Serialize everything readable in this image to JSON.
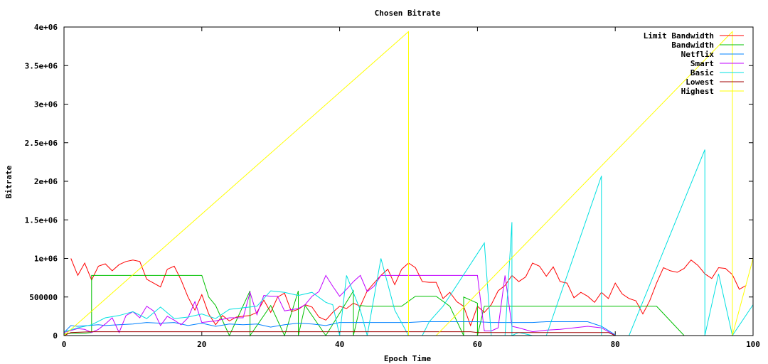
{
  "chart_data": {
    "type": "line",
    "title": "Chosen Bitrate",
    "xlabel": "Epoch Time",
    "ylabel": "Bitrate",
    "xlim": [
      0,
      100
    ],
    "ylim": [
      0,
      4000000
    ],
    "grid": false,
    "legend_position": "top-right",
    "x_ticks": [
      0,
      20,
      40,
      60,
      80,
      100
    ],
    "x_tick_labels": [
      "0",
      "20",
      "40",
      "60",
      "80",
      "100"
    ],
    "y_ticks": [
      0,
      500000,
      1000000,
      1500000,
      2000000,
      2500000,
      3000000,
      3500000,
      4000000
    ],
    "y_tick_labels": [
      "0",
      "500000",
      "1e+06",
      "1.5e+06",
      "2e+06",
      "2.5e+06",
      "3e+06",
      "3.5e+06",
      "4e+06"
    ],
    "series": [
      {
        "name": "Limit Bandwidth",
        "color": "#ff0000",
        "points": [
          [
            1,
            1000000
          ],
          [
            2,
            780000
          ],
          [
            3,
            940000
          ],
          [
            4,
            720000
          ],
          [
            5,
            900000
          ],
          [
            6,
            930000
          ],
          [
            7,
            840000
          ],
          [
            8,
            920000
          ],
          [
            9,
            960000
          ],
          [
            10,
            980000
          ],
          [
            11,
            960000
          ],
          [
            12,
            730000
          ],
          [
            13,
            680000
          ],
          [
            14,
            630000
          ],
          [
            15,
            860000
          ],
          [
            16,
            900000
          ],
          [
            17,
            720000
          ],
          [
            18,
            500000
          ],
          [
            19,
            330000
          ],
          [
            20,
            530000
          ],
          [
            21,
            280000
          ],
          [
            22,
            140000
          ],
          [
            23,
            260000
          ],
          [
            24,
            190000
          ],
          [
            25,
            240000
          ],
          [
            26,
            250000
          ],
          [
            27,
            260000
          ],
          [
            28,
            300000
          ],
          [
            29,
            460000
          ],
          [
            30,
            300000
          ],
          [
            31,
            500000
          ],
          [
            32,
            550000
          ],
          [
            33,
            310000
          ],
          [
            34,
            340000
          ],
          [
            35,
            400000
          ],
          [
            36,
            370000
          ],
          [
            37,
            240000
          ],
          [
            38,
            200000
          ],
          [
            39,
            300000
          ],
          [
            40,
            380000
          ],
          [
            41,
            350000
          ],
          [
            42,
            420000
          ],
          [
            43,
            380000
          ],
          [
            44,
            580000
          ],
          [
            45,
            680000
          ],
          [
            46,
            780000
          ],
          [
            47,
            860000
          ],
          [
            48,
            660000
          ],
          [
            49,
            860000
          ],
          [
            50,
            940000
          ],
          [
            51,
            880000
          ],
          [
            52,
            700000
          ],
          [
            53,
            690000
          ],
          [
            54,
            690000
          ],
          [
            55,
            480000
          ],
          [
            56,
            560000
          ],
          [
            57,
            440000
          ],
          [
            58,
            380000
          ],
          [
            59,
            130000
          ],
          [
            60,
            380000
          ],
          [
            61,
            300000
          ],
          [
            62,
            400000
          ],
          [
            63,
            580000
          ],
          [
            64,
            650000
          ],
          [
            65,
            780000
          ],
          [
            66,
            700000
          ],
          [
            67,
            760000
          ],
          [
            68,
            940000
          ],
          [
            69,
            900000
          ],
          [
            70,
            770000
          ],
          [
            71,
            890000
          ],
          [
            72,
            700000
          ],
          [
            73,
            680000
          ],
          [
            74,
            490000
          ],
          [
            75,
            560000
          ],
          [
            76,
            510000
          ],
          [
            77,
            430000
          ],
          [
            78,
            560000
          ],
          [
            79,
            480000
          ],
          [
            80,
            680000
          ],
          [
            81,
            540000
          ],
          [
            82,
            480000
          ],
          [
            83,
            450000
          ],
          [
            84,
            280000
          ],
          [
            85,
            450000
          ],
          [
            86,
            680000
          ],
          [
            87,
            880000
          ],
          [
            88,
            840000
          ],
          [
            89,
            820000
          ],
          [
            90,
            870000
          ],
          [
            91,
            980000
          ],
          [
            92,
            910000
          ],
          [
            93,
            800000
          ],
          [
            94,
            740000
          ],
          [
            95,
            880000
          ],
          [
            96,
            870000
          ],
          [
            97,
            790000
          ],
          [
            98,
            600000
          ],
          [
            99,
            650000
          ]
        ]
      },
      {
        "name": "Bandwidth",
        "color": "#00c000",
        "points": [
          [
            0,
            20000
          ],
          [
            1,
            30000
          ],
          [
            3,
            30000
          ],
          [
            4,
            40000
          ],
          [
            4,
            780000
          ],
          [
            20,
            780000
          ],
          [
            21,
            500000
          ],
          [
            22,
            390000
          ],
          [
            24,
            0
          ],
          [
            27,
            580000
          ],
          [
            27,
            0
          ],
          [
            30,
            390000
          ],
          [
            32,
            0
          ],
          [
            34,
            580000
          ],
          [
            34,
            0
          ],
          [
            35,
            390000
          ],
          [
            38,
            0
          ],
          [
            42,
            580000
          ],
          [
            42,
            0
          ],
          [
            43,
            390000
          ],
          [
            44,
            380000
          ],
          [
            49,
            380000
          ],
          [
            51,
            510000
          ],
          [
            54,
            510000
          ],
          [
            56,
            380000
          ],
          [
            58,
            0
          ],
          [
            58,
            500000
          ],
          [
            60,
            420000
          ],
          [
            60,
            0
          ],
          [
            61,
            380000
          ],
          [
            86,
            380000
          ],
          [
            90,
            0
          ]
        ]
      },
      {
        "name": "Netflix",
        "color": "#0080ff",
        "points": [
          [
            0,
            40000
          ],
          [
            1,
            130000
          ],
          [
            2,
            120000
          ],
          [
            5,
            140000
          ],
          [
            6,
            130000
          ],
          [
            8,
            140000
          ],
          [
            10,
            150000
          ],
          [
            12,
            170000
          ],
          [
            14,
            160000
          ],
          [
            16,
            170000
          ],
          [
            18,
            130000
          ],
          [
            20,
            160000
          ],
          [
            22,
            120000
          ],
          [
            24,
            150000
          ],
          [
            26,
            140000
          ],
          [
            28,
            150000
          ],
          [
            30,
            110000
          ],
          [
            32,
            140000
          ],
          [
            34,
            160000
          ],
          [
            36,
            150000
          ],
          [
            38,
            130000
          ],
          [
            40,
            170000
          ],
          [
            46,
            170000
          ],
          [
            48,
            170000
          ],
          [
            50,
            170000
          ],
          [
            52,
            180000
          ],
          [
            60,
            180000
          ],
          [
            62,
            170000
          ],
          [
            64,
            170000
          ],
          [
            68,
            170000
          ],
          [
            70,
            180000
          ],
          [
            76,
            180000
          ],
          [
            78,
            120000
          ],
          [
            80,
            10000
          ]
        ]
      },
      {
        "name": "Smart",
        "color": "#c000ff",
        "points": [
          [
            0,
            40000
          ],
          [
            2,
            90000
          ],
          [
            3,
            80000
          ],
          [
            4,
            40000
          ],
          [
            5,
            80000
          ],
          [
            6,
            150000
          ],
          [
            7,
            230000
          ],
          [
            8,
            40000
          ],
          [
            9,
            260000
          ],
          [
            10,
            310000
          ],
          [
            11,
            230000
          ],
          [
            12,
            380000
          ],
          [
            13,
            320000
          ],
          [
            14,
            130000
          ],
          [
            15,
            250000
          ],
          [
            16,
            200000
          ],
          [
            17,
            140000
          ],
          [
            18,
            230000
          ],
          [
            19,
            440000
          ],
          [
            20,
            170000
          ],
          [
            21,
            180000
          ],
          [
            22,
            190000
          ],
          [
            24,
            230000
          ],
          [
            26,
            230000
          ],
          [
            27,
            560000
          ],
          [
            28,
            270000
          ],
          [
            29,
            520000
          ],
          [
            30,
            510000
          ],
          [
            31,
            510000
          ],
          [
            32,
            320000
          ],
          [
            34,
            350000
          ],
          [
            35,
            400000
          ],
          [
            36,
            510000
          ],
          [
            37,
            570000
          ],
          [
            38,
            780000
          ],
          [
            39,
            640000
          ],
          [
            40,
            510000
          ],
          [
            41,
            600000
          ],
          [
            42,
            700000
          ],
          [
            43,
            780000
          ],
          [
            44,
            570000
          ],
          [
            45,
            640000
          ],
          [
            46,
            780000
          ],
          [
            60,
            780000
          ],
          [
            61,
            60000
          ],
          [
            62,
            60000
          ],
          [
            63,
            100000
          ],
          [
            64,
            780000
          ],
          [
            65,
            120000
          ],
          [
            66,
            100000
          ],
          [
            68,
            50000
          ],
          [
            70,
            70000
          ],
          [
            72,
            80000
          ],
          [
            74,
            100000
          ],
          [
            76,
            120000
          ],
          [
            78,
            100000
          ],
          [
            80,
            0
          ]
        ]
      },
      {
        "name": "Basic",
        "color": "#00e0e0",
        "points": [
          [
            0,
            50000
          ],
          [
            2,
            100000
          ],
          [
            4,
            140000
          ],
          [
            6,
            230000
          ],
          [
            8,
            260000
          ],
          [
            10,
            310000
          ],
          [
            12,
            220000
          ],
          [
            14,
            370000
          ],
          [
            16,
            220000
          ],
          [
            18,
            240000
          ],
          [
            20,
            280000
          ],
          [
            22,
            220000
          ],
          [
            24,
            340000
          ],
          [
            26,
            360000
          ],
          [
            28,
            380000
          ],
          [
            30,
            580000
          ],
          [
            32,
            560000
          ],
          [
            34,
            520000
          ],
          [
            36,
            560000
          ],
          [
            38,
            430000
          ],
          [
            39,
            400000
          ],
          [
            40,
            0
          ],
          [
            41,
            780000
          ],
          [
            43,
            330000
          ],
          [
            44,
            0
          ],
          [
            46,
            1000000
          ],
          [
            48,
            330000
          ],
          [
            50,
            0
          ],
          [
            52,
            0
          ],
          [
            53,
            180000
          ],
          [
            55,
            380000
          ],
          [
            61,
            1200000
          ],
          [
            62,
            0
          ],
          [
            64,
            0
          ],
          [
            65,
            1470000
          ],
          [
            65,
            0
          ],
          [
            66,
            40000
          ],
          [
            68,
            0
          ],
          [
            70,
            0
          ],
          [
            78,
            2070000
          ],
          [
            78,
            0
          ],
          [
            82,
            0
          ],
          [
            93,
            2410000
          ],
          [
            93,
            1200000
          ],
          [
            93,
            0
          ],
          [
            95,
            800000
          ],
          [
            97,
            0
          ],
          [
            100,
            400000
          ]
        ]
      },
      {
        "name": "Lowest",
        "color": "#a00000",
        "points": [
          [
            0,
            0
          ],
          [
            1,
            40000
          ],
          [
            4,
            50000
          ],
          [
            59,
            50000
          ],
          [
            60,
            40000
          ],
          [
            79,
            40000
          ],
          [
            80,
            0
          ]
        ]
      },
      {
        "name": "Highest",
        "color": "#ffff00",
        "points": [
          [
            0,
            0
          ],
          [
            50,
            3940000
          ],
          [
            50,
            0
          ],
          [
            54,
            0
          ],
          [
            97,
            3940000
          ],
          [
            97,
            0
          ],
          [
            100,
            1000000
          ]
        ]
      }
    ]
  }
}
